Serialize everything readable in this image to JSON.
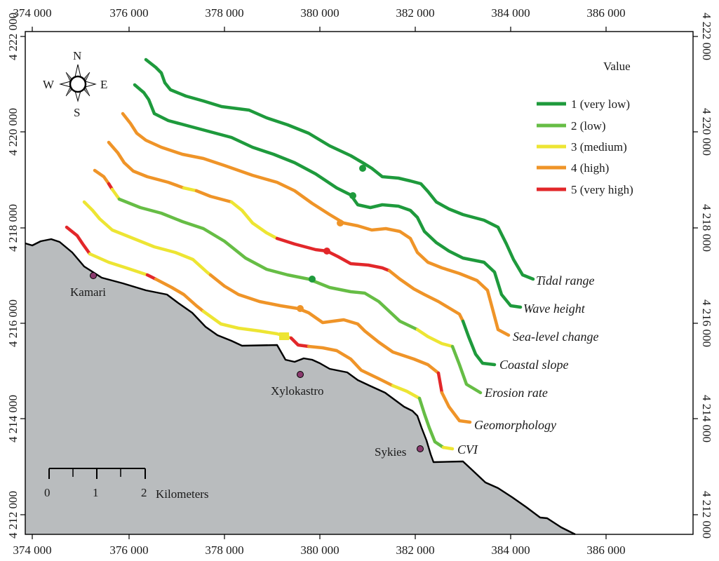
{
  "colors": {
    "very_low": "#1e9a3c",
    "low": "#66bd45",
    "medium": "#ede533",
    "high": "#ef9428",
    "very_high": "#e2272a",
    "land": "#b9bcbe",
    "coast": "#000000"
  },
  "axes": {
    "x_top": [
      "374 000",
      "376 000",
      "378 000",
      "380 000",
      "382 000",
      "384 000",
      "386 000"
    ],
    "x_bottom": [
      "374 000",
      "376 000",
      "378 000",
      "380 000",
      "382 000",
      "384 000",
      "386 000"
    ],
    "y_left": [
      "4 222 000",
      "4 220 000",
      "4 218 000",
      "4 216 000",
      "4 214 000",
      "4 212 000"
    ],
    "y_right": [
      "4 222 000",
      "4 220 000",
      "4 218 000",
      "4 216 000",
      "4 214 000",
      "4 212 000"
    ]
  },
  "north_arrow": {
    "n": "N",
    "s": "S",
    "e": "E",
    "w": "W"
  },
  "legend": {
    "title": "Value",
    "items": [
      {
        "label": "1 (very low)",
        "color": "#1e9a3c"
      },
      {
        "label": "2 (low)",
        "color": "#66bd45"
      },
      {
        "label": "3 (medium)",
        "color": "#ede533"
      },
      {
        "label": "4 (high)",
        "color": "#ef9428"
      },
      {
        "label": "5 (very high)",
        "color": "#e2272a"
      }
    ]
  },
  "layers": [
    {
      "label": "Tidal range"
    },
    {
      "label": "Wave height"
    },
    {
      "label": "Sea-level change"
    },
    {
      "label": "Coastal slope"
    },
    {
      "label": "Erosion rate"
    },
    {
      "label": "Geomorphology"
    },
    {
      "label": "CVI"
    }
  ],
  "towns": [
    {
      "name": "Kamari"
    },
    {
      "name": "Xylokastro"
    },
    {
      "name": "Sykies"
    }
  ],
  "scalebar": {
    "ticks": [
      "0",
      "1",
      "2"
    ],
    "unit": "Kilometers"
  }
}
